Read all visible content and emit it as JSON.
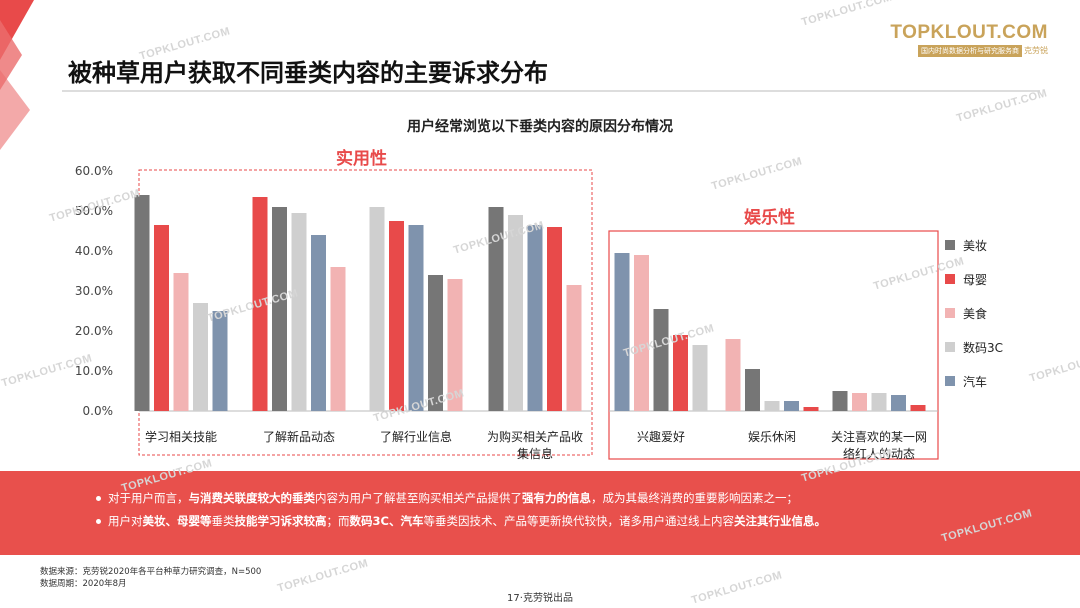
{
  "header": {
    "title": "被种草用户获取不同垂类内容的主要诉求分布",
    "brand_logo": "TOPKLOUT.COM",
    "brand_sub_box": "国内时尚数据分析与研究服务商",
    "brand_sub_name": "克劳锐"
  },
  "watermark_text": "TOPKLOUT.COM",
  "chart_data": {
    "type": "bar",
    "title": "用户经常浏览以下垂类内容的原因分布情况",
    "y_ticks": [
      "60.0%",
      "50.0%",
      "40.0%",
      "30.0%",
      "20.0%",
      "10.0%",
      "0.0%"
    ],
    "ylim": [
      0,
      60
    ],
    "legend_position": "right",
    "series": [
      {
        "name": "美妆",
        "color": "#767676"
      },
      {
        "name": "母婴",
        "color": "#e84a4a"
      },
      {
        "name": "美食",
        "color": "#f2b3b3"
      },
      {
        "name": "数码3C",
        "color": "#cfcfcf"
      },
      {
        "name": "汽车",
        "color": "#7f93ad"
      }
    ],
    "groups": [
      {
        "label": "实用性",
        "categories": [
          {
            "label": "学习相关技能",
            "values": [
              54.0,
              46.5,
              34.5,
              27.0,
              25.0
            ],
            "order": [
              0,
              1,
              2,
              3,
              4
            ]
          },
          {
            "label": "了解新品动态",
            "values": [
              51.0,
              53.5,
              36.0,
              49.5,
              44.0
            ],
            "order": [
              1,
              0,
              3,
              4,
              2
            ]
          },
          {
            "label": "了解行业信息",
            "values": [
              34.0,
              47.5,
              33.0,
              51.0,
              46.5
            ],
            "order": [
              3,
              1,
              4,
              0,
              2
            ]
          },
          {
            "label": "为购买相关产品收集信息",
            "values": [
              51.0,
              46.0,
              31.5,
              49.0,
              46.5
            ],
            "order": [
              0,
              3,
              4,
              1,
              2
            ]
          }
        ]
      },
      {
        "label": "娱乐性",
        "categories": [
          {
            "label": "兴趣爱好",
            "values": [
              25.5,
              19.0,
              39.0,
              16.5,
              39.5
            ],
            "order": [
              4,
              2,
              0,
              1,
              3
            ]
          },
          {
            "label": "娱乐休闲",
            "values": [
              10.5,
              1.0,
              18.0,
              2.5,
              2.5
            ],
            "order": [
              2,
              0,
              3,
              4,
              1
            ]
          },
          {
            "label": "关注喜欢的某一网络红人的动态",
            "values": [
              5.0,
              1.5,
              4.5,
              4.5,
              4.0
            ],
            "order": [
              0,
              2,
              3,
              4,
              1
            ]
          }
        ]
      }
    ]
  },
  "x_labels": {
    "c0": "学习相关技能",
    "c1": "了解新品动态",
    "c2": "了解行业信息",
    "c3_line1": "为购买相关产品收",
    "c3_line2": "集信息",
    "c4": "兴趣爱好",
    "c5": "娱乐休闲",
    "c6_line1": "关注喜欢的某一网",
    "c6_line2": "络红人的动态"
  },
  "summary": {
    "line1": [
      {
        "text": "对于用户而言，",
        "bold": false
      },
      {
        "text": "与消费关联度较大的垂类",
        "bold": true
      },
      {
        "text": "内容为用户了解甚至购买相关产品提供了",
        "bold": false
      },
      {
        "text": "强有力的信息",
        "bold": true
      },
      {
        "text": "，成为其最终消费的重要影响因素之一；",
        "bold": false
      }
    ],
    "line2": [
      {
        "text": "用户对",
        "bold": false
      },
      {
        "text": "美妆、母婴等",
        "bold": true
      },
      {
        "text": "垂类",
        "bold": false
      },
      {
        "text": "技能学习诉求较高",
        "bold": true
      },
      {
        "text": "；而",
        "bold": false
      },
      {
        "text": "数码3C、汽车",
        "bold": true
      },
      {
        "text": "等垂类因技术、产品等更新换代较快，诸多用户通过线上内容",
        "bold": false
      },
      {
        "text": "关注其行业信息。",
        "bold": true
      }
    ]
  },
  "source": {
    "line1": "数据来源：克劳锐2020年各平台种草力研究调查，N=500",
    "line2": "数据周期：2020年8月"
  },
  "footer": "17·克劳锐出品"
}
